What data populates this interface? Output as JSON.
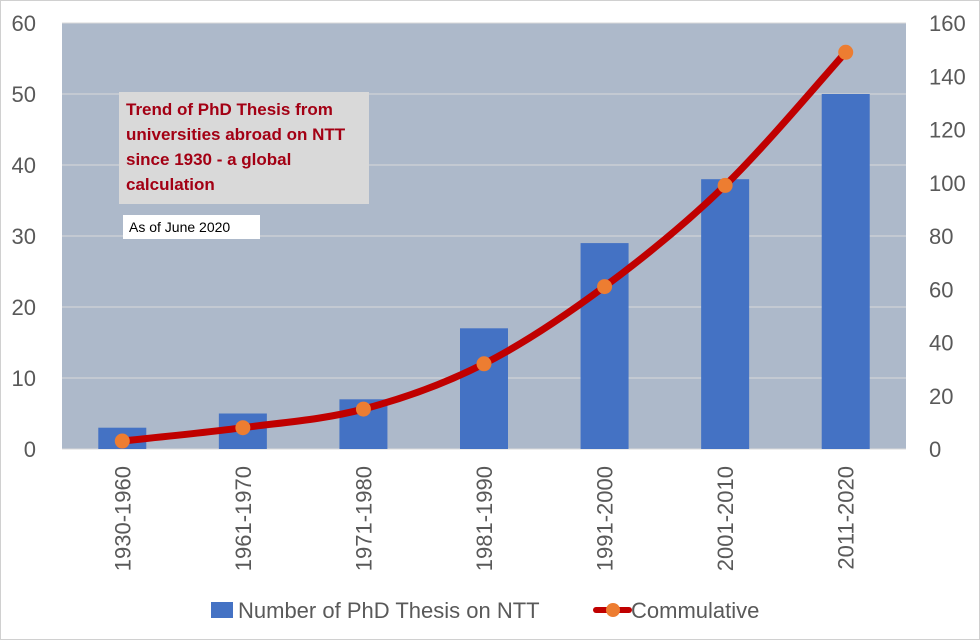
{
  "chart_data": {
    "type": "bar+line",
    "title_lines": [
      "Trend of PhD Thesis from",
      "universities abroad on NTT",
      "since 1930 - a global",
      "calculation"
    ],
    "note": "As of June 2020",
    "categories": [
      "1930-1960",
      "1961-1970",
      "1971-1980",
      "1981-1990",
      "1991-2000",
      "2001-2010",
      "2011-2020"
    ],
    "series": [
      {
        "name": "Number of PhD Thesis on NTT",
        "type": "bar",
        "axis": "left",
        "color": "#4472c4",
        "values": [
          3,
          5,
          7,
          17,
          29,
          38,
          50
        ]
      },
      {
        "name": "Commulative",
        "type": "line",
        "axis": "right",
        "color": "#c00000",
        "marker_color": "#ed7d31",
        "values": [
          3,
          8,
          15,
          32,
          61,
          99,
          149
        ]
      }
    ],
    "y_left": {
      "min": 0,
      "max": 60,
      "step": 10
    },
    "y_right": {
      "min": 0,
      "max": 160,
      "step": 20
    },
    "plot_background": "#adb9ca",
    "grid": true,
    "legend_position": "bottom"
  }
}
